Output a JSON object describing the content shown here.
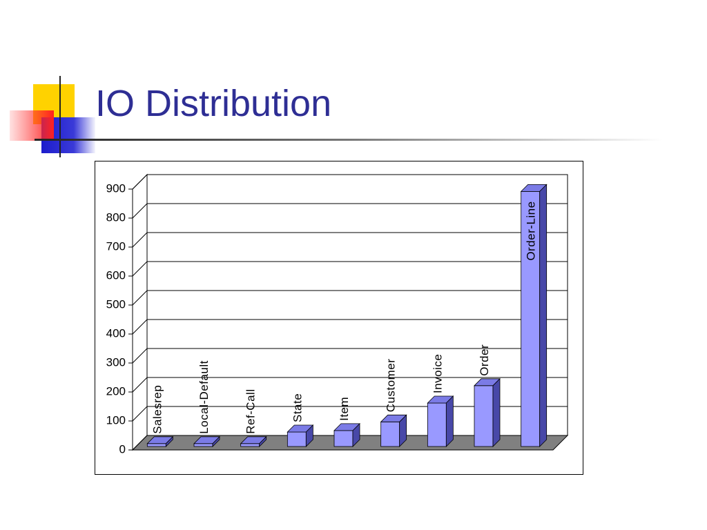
{
  "chart_data": {
    "type": "bar",
    "title": "IO Distribution",
    "categories": [
      "Salesrep",
      "Local-Default",
      "Ref-Call",
      "State",
      "Item",
      "Customer",
      "Invoice",
      "Order",
      "Order-Line"
    ],
    "values": [
      10,
      10,
      10,
      50,
      55,
      85,
      150,
      210,
      880
    ],
    "color": "#9999ff",
    "ylim": [
      0,
      900
    ],
    "yticks": [
      0,
      100,
      200,
      300,
      400,
      500,
      600,
      700,
      800,
      900
    ],
    "grid": true
  }
}
